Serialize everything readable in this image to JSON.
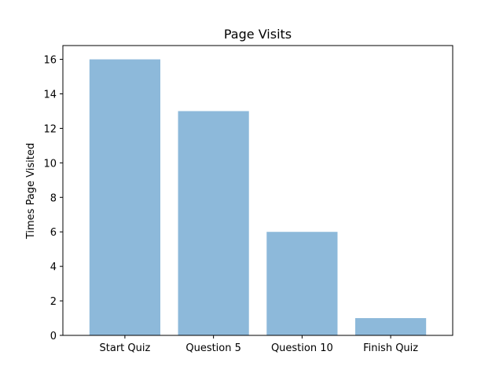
{
  "chart_data": {
    "type": "bar",
    "title": "Page Visits",
    "xlabel": "",
    "ylabel": "Times Page Visited",
    "categories": [
      "Start Quiz",
      "Question 5",
      "Question 10",
      "Finish Quiz"
    ],
    "values": [
      16,
      13,
      6,
      1
    ],
    "ylim": [
      0,
      16.8
    ],
    "yticks": [
      0,
      2,
      4,
      6,
      8,
      10,
      12,
      14,
      16
    ],
    "grid": false,
    "legend": "none",
    "bar_color": "#8db9da"
  }
}
